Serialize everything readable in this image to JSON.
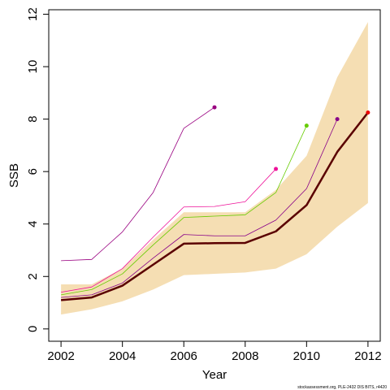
{
  "chart_data": {
    "type": "line",
    "x_label": "Year",
    "y_label": "SSB",
    "footnote": "stockassessment.org, PLE-2432 DIS BITS, r4420",
    "x": [
      2002,
      2003,
      2004,
      2005,
      2006,
      2007,
      2008,
      2009,
      2010,
      2011,
      2012
    ],
    "xlim": [
      2001.6,
      2012.4
    ],
    "xticks": [
      2002,
      2004,
      2006,
      2008,
      2010,
      2012
    ],
    "ylim": [
      -0.47,
      12.17
    ],
    "yticks": [
      0,
      2,
      4,
      6,
      8,
      10,
      12
    ],
    "band": {
      "color": "#f5deb3",
      "lower": [
        0.55,
        0.75,
        1.05,
        1.5,
        2.05,
        2.1,
        2.15,
        2.3,
        2.85,
        3.9,
        4.8
      ],
      "upper": [
        1.7,
        1.7,
        2.3,
        3.4,
        4.45,
        4.45,
        4.45,
        5.3,
        6.6,
        9.6,
        11.7
      ]
    },
    "series": [
      {
        "color": "#990080",
        "width": 0.8,
        "values": [
          2.6,
          2.65,
          3.7,
          5.2,
          7.65,
          8.45,
          null,
          null,
          null,
          null,
          null
        ]
      },
      {
        "color": "#ee1199",
        "width": 0.8,
        "values": [
          1.4,
          1.6,
          2.3,
          3.5,
          4.65,
          4.67,
          4.85,
          6.1,
          null,
          null,
          null
        ]
      },
      {
        "color": "#66cc00",
        "width": 0.8,
        "values": [
          1.3,
          1.5,
          2.1,
          3.2,
          4.25,
          4.3,
          4.35,
          5.2,
          7.75,
          null,
          null
        ]
      },
      {
        "color": "#880088",
        "width": 0.8,
        "values": [
          1.2,
          1.3,
          1.75,
          2.7,
          3.6,
          3.55,
          3.55,
          4.15,
          5.35,
          8.0,
          null
        ]
      },
      {
        "color": "#5a0000",
        "width": 2.5,
        "marker_color": "#ee0000",
        "values": [
          1.1,
          1.2,
          1.65,
          2.45,
          3.25,
          3.27,
          3.28,
          3.72,
          4.72,
          6.75,
          8.25
        ]
      }
    ]
  }
}
